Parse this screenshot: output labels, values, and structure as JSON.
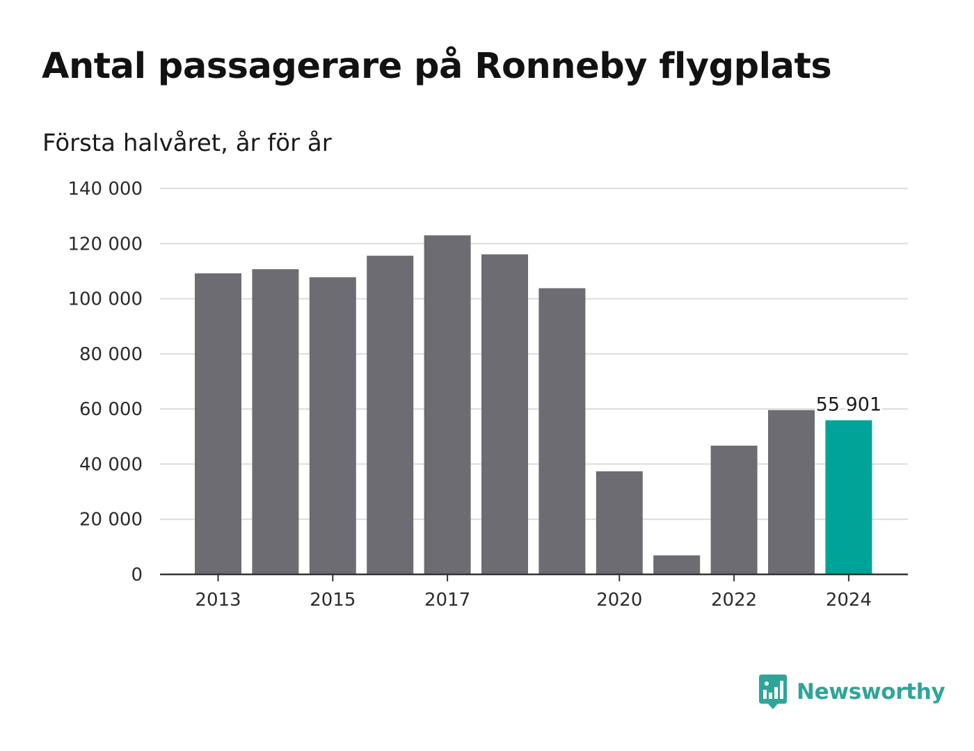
{
  "chart_data": {
    "type": "bar",
    "title": "Antal passagerare på Ronneby flygplats",
    "subtitle": "Första halvåret, år för år",
    "xlabel": "",
    "ylabel": "",
    "categories": [
      "2013",
      "2014",
      "2015",
      "2016",
      "2017",
      "2018",
      "2019",
      "2020",
      "2021",
      "2022",
      "2023",
      "2024"
    ],
    "values": [
      109200,
      110700,
      107800,
      115600,
      123000,
      116100,
      103800,
      37400,
      6900,
      46700,
      59600,
      55901
    ],
    "x_tick_labels": [
      "2013",
      "2015",
      "2017",
      "2020",
      "2022",
      "2024"
    ],
    "ylim": [
      0,
      140000
    ],
    "y_ticks": [
      0,
      20000,
      40000,
      60000,
      80000,
      100000,
      120000,
      140000
    ],
    "y_tick_labels": [
      "0",
      "20 000",
      "40 000",
      "60 000",
      "80 000",
      "100 000",
      "120 000",
      "140 000"
    ],
    "grid": true,
    "highlight_index": 11,
    "annotations": [
      {
        "category": "2024",
        "text": "55 901"
      }
    ],
    "colors": {
      "bar": "#6d6c72",
      "highlight": "#00a398",
      "grid": "#dcdcdc",
      "axis": "#333333"
    }
  },
  "branding": {
    "name": "Newsworthy",
    "color": "#2fa59a",
    "icon": "newsworthy-logo-icon"
  }
}
